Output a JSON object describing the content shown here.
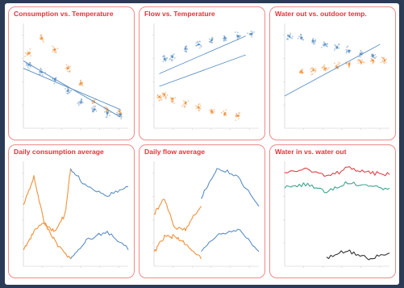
{
  "chart_data": [
    {
      "type": "scatter",
      "title": "Consumption vs. Temperature",
      "series": [
        {
          "color": "orange",
          "points": [
            [
              -10,
              10
            ],
            [
              -5,
              12
            ],
            [
              0,
              10.5
            ],
            [
              5,
              8
            ],
            [
              10,
              6
            ],
            [
              15,
              3.5
            ],
            [
              20,
              2.5
            ],
            [
              25,
              2
            ]
          ]
        },
        {
          "color": "blue",
          "points": [
            [
              -10,
              8.5
            ],
            [
              -5,
              7.5
            ],
            [
              0,
              6.5
            ],
            [
              5,
              5
            ],
            [
              10,
              3.5
            ],
            [
              15,
              2.5
            ],
            [
              20,
              2
            ],
            [
              25,
              1.8
            ]
          ]
        }
      ],
      "trend_lines": [
        {
          "color": "blue",
          "from": [
            -12,
            9
          ],
          "to": [
            25,
            1.5
          ]
        },
        {
          "color": "blue",
          "from": [
            -12,
            8
          ],
          "to": [
            25,
            2.5
          ]
        }
      ],
      "xlim": [
        -12,
        28
      ],
      "ylim": [
        0,
        14
      ]
    },
    {
      "type": "scatter",
      "title": "Flow vs. Temperature",
      "series": [
        {
          "color": "blue",
          "points": [
            [
              2,
              33
            ],
            [
              5,
              34
            ],
            [
              10,
              38
            ],
            [
              15,
              40
            ],
            [
              20,
              42
            ],
            [
              25,
              43
            ],
            [
              30,
              44
            ],
            [
              35,
              45
            ]
          ]
        },
        {
          "color": "orange",
          "points": [
            [
              0,
              15
            ],
            [
              2,
              16
            ],
            [
              5,
              14
            ],
            [
              10,
              12
            ],
            [
              15,
              10
            ],
            [
              20,
              8
            ],
            [
              25,
              7
            ],
            [
              30,
              6
            ]
          ]
        }
      ],
      "trend_lines": [
        {
          "color": "blue",
          "from": [
            0,
            26
          ],
          "to": [
            33,
            44
          ]
        },
        {
          "color": "blue",
          "from": [
            0,
            20
          ],
          "to": [
            33,
            35
          ]
        }
      ],
      "xlim": [
        -2,
        38
      ],
      "ylim": [
        0,
        50
      ]
    },
    {
      "type": "scatter",
      "title": "Water out vs. outdoor temp.",
      "series": [
        {
          "color": "blue",
          "points": [
            [
              -10,
              77
            ],
            [
              -5,
              76
            ],
            [
              0,
              74
            ],
            [
              5,
              72
            ],
            [
              10,
              70
            ],
            [
              15,
              68
            ],
            [
              20,
              66
            ],
            [
              25,
              65
            ]
          ]
        },
        {
          "color": "orange",
          "points": [
            [
              -5,
              55
            ],
            [
              0,
              56
            ],
            [
              5,
              57
            ],
            [
              10,
              58
            ],
            [
              15,
              60
            ],
            [
              20,
              61
            ],
            [
              25,
              62
            ],
            [
              30,
              62
            ]
          ]
        }
      ],
      "trend_lines": [
        {
          "color": "blue",
          "from": [
            -12,
            40
          ],
          "to": [
            28,
            72
          ]
        }
      ],
      "xlim": [
        -12,
        32
      ],
      "ylim": [
        20,
        85
      ]
    },
    {
      "type": "line",
      "title": "Daily consumption average",
      "series": [
        {
          "color": "orange",
          "x": [
            0,
            10,
            20,
            30,
            40,
            45
          ],
          "y": [
            8,
            11,
            6,
            5,
            7,
            12
          ]
        },
        {
          "color": "blue",
          "x": [
            45,
            60,
            80,
            100
          ],
          "y": [
            12,
            10,
            9,
            10
          ]
        },
        {
          "color": "orange",
          "x": [
            0,
            10,
            20,
            30,
            45
          ],
          "y": [
            3,
            5,
            6,
            4,
            2
          ]
        },
        {
          "color": "blue",
          "x": [
            45,
            60,
            80,
            100
          ],
          "y": [
            2,
            4,
            5,
            3
          ]
        }
      ]
    },
    {
      "type": "line",
      "title": "Daily flow average",
      "series": [
        {
          "color": "orange",
          "x": [
            0,
            10,
            20,
            30,
            45
          ],
          "y": [
            8,
            10,
            6,
            6,
            9
          ]
        },
        {
          "color": "blue",
          "x": [
            45,
            60,
            80,
            100
          ],
          "y": [
            10,
            14,
            13,
            9
          ]
        },
        {
          "color": "orange",
          "x": [
            0,
            10,
            20,
            30,
            45
          ],
          "y": [
            3,
            5,
            5,
            4,
            2
          ]
        },
        {
          "color": "blue",
          "x": [
            45,
            60,
            80,
            100
          ],
          "y": [
            3,
            5,
            6,
            3
          ]
        }
      ]
    },
    {
      "type": "line",
      "title": "Water in vs. water out",
      "series": [
        {
          "color": "red",
          "x": [
            0,
            20,
            40,
            60,
            80,
            100
          ],
          "y": [
            68,
            70,
            66,
            70,
            68,
            67
          ]
        },
        {
          "color": "teal",
          "x": [
            0,
            20,
            40,
            60,
            80,
            100
          ],
          "y": [
            60,
            62,
            58,
            63,
            61,
            60
          ]
        },
        {
          "color": "black",
          "x": [
            40,
            60,
            80,
            100
          ],
          "y": [
            25,
            28,
            24,
            27
          ]
        }
      ]
    }
  ]
}
